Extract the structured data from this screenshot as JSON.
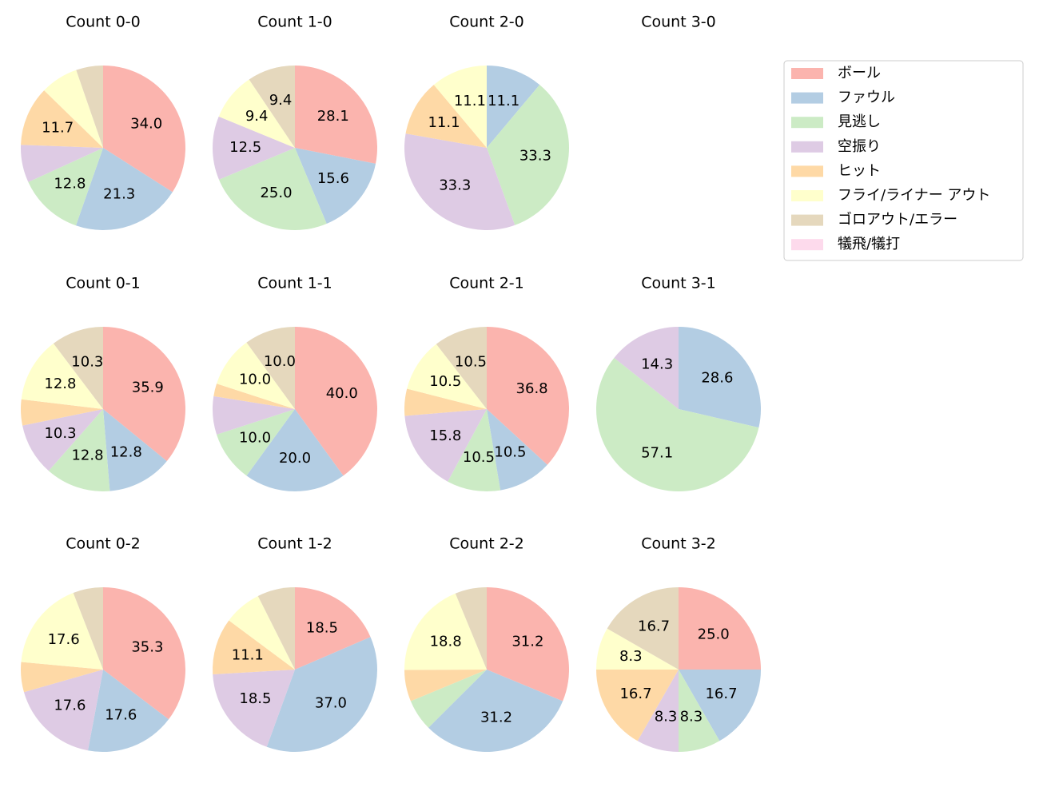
{
  "legend": {
    "labels": [
      "ボール",
      "ファウル",
      "見逃し",
      "空振り",
      "ヒット",
      "フライ/ライナー アウト",
      "ゴロアウト/エラー",
      "犠飛/犠打"
    ],
    "colors": [
      "#fbb4ae",
      "#b3cde3",
      "#ccebc5",
      "#decbe4",
      "#fed9a6",
      "#ffffcc",
      "#e5d8bd",
      "#fddaec"
    ]
  },
  "chart_data": [
    {
      "type": "pie",
      "title": "Count 0-0",
      "values": [
        34.0,
        21.3,
        12.8,
        7.4,
        11.7,
        7.4,
        5.3,
        0
      ],
      "value_labels": [
        "34.0",
        "21.3",
        "12.8",
        null,
        "11.7",
        null,
        null,
        null
      ]
    },
    {
      "type": "pie",
      "title": "Count 1-0",
      "values": [
        28.1,
        15.6,
        25.0,
        12.5,
        0,
        9.4,
        9.4,
        0
      ],
      "value_labels": [
        "28.1",
        "15.6",
        "25.0",
        "12.5",
        null,
        "9.4",
        "9.4",
        null
      ]
    },
    {
      "type": "pie",
      "title": "Count 2-0",
      "values": [
        0,
        11.1,
        33.3,
        33.3,
        11.1,
        11.1,
        0,
        0
      ],
      "value_labels": [
        null,
        "11.1",
        "33.3",
        "33.3",
        "11.1",
        "11.1",
        null,
        null
      ]
    },
    {
      "type": "pie",
      "title": "Count 3-0",
      "values": [],
      "value_labels": []
    },
    {
      "type": "pie",
      "title": "Count 0-1",
      "values": [
        35.9,
        12.8,
        12.8,
        10.3,
        5.1,
        12.8,
        10.3,
        0
      ],
      "value_labels": [
        "35.9",
        "12.8",
        "12.8",
        "10.3",
        null,
        "12.8",
        "10.3",
        null
      ]
    },
    {
      "type": "pie",
      "title": "Count 1-1",
      "values": [
        40.0,
        20.0,
        10.0,
        7.5,
        2.5,
        10.0,
        10.0,
        0
      ],
      "value_labels": [
        "40.0",
        "20.0",
        "10.0",
        null,
        null,
        "10.0",
        "10.0",
        null
      ]
    },
    {
      "type": "pie",
      "title": "Count 2-1",
      "values": [
        36.8,
        10.5,
        10.5,
        15.8,
        5.3,
        10.5,
        10.5,
        0
      ],
      "value_labels": [
        "36.8",
        "10.5",
        "10.5",
        "15.8",
        null,
        "10.5",
        "10.5",
        null
      ]
    },
    {
      "type": "pie",
      "title": "Count 3-1",
      "values": [
        0,
        28.6,
        57.1,
        14.3,
        0,
        0,
        0,
        0
      ],
      "value_labels": [
        null,
        "28.6",
        "57.1",
        "14.3",
        null,
        null,
        null,
        null
      ]
    },
    {
      "type": "pie",
      "title": "Count 0-2",
      "values": [
        35.3,
        17.6,
        0,
        17.6,
        5.9,
        17.6,
        5.9,
        0
      ],
      "value_labels": [
        "35.3",
        "17.6",
        null,
        "17.6",
        null,
        "17.6",
        null,
        null
      ]
    },
    {
      "type": "pie",
      "title": "Count 1-2",
      "values": [
        18.5,
        37.0,
        0,
        18.5,
        11.1,
        7.4,
        7.4,
        0
      ],
      "value_labels": [
        "18.5",
        "37.0",
        null,
        "18.5",
        "11.1",
        null,
        null,
        null
      ]
    },
    {
      "type": "pie",
      "title": "Count 2-2",
      "values": [
        31.2,
        31.2,
        6.2,
        0,
        6.2,
        18.8,
        6.2,
        0
      ],
      "value_labels": [
        "31.2",
        "31.2",
        null,
        null,
        null,
        "18.8",
        null,
        null
      ]
    },
    {
      "type": "pie",
      "title": "Count 3-2",
      "values": [
        25.0,
        16.7,
        8.3,
        8.3,
        16.7,
        8.3,
        16.7,
        0
      ],
      "value_labels": [
        "25.0",
        "16.7",
        "8.3",
        "8.3",
        "16.7",
        "8.3",
        "16.7",
        null
      ]
    }
  ]
}
